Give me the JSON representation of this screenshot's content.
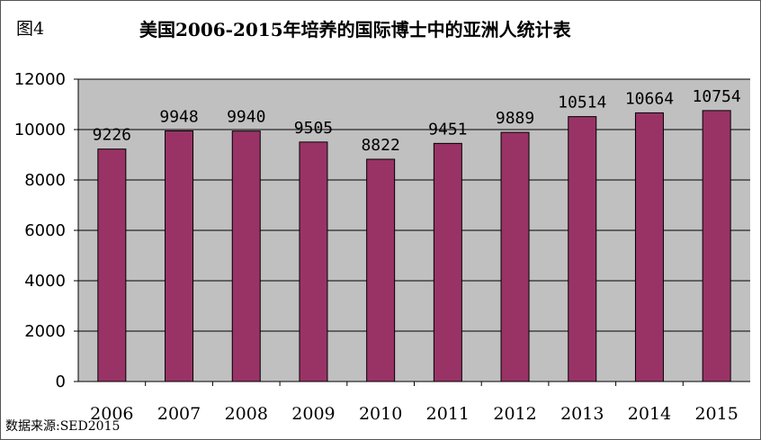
{
  "figure_label": "图4",
  "source": "数据来源:SED2015",
  "colors": {
    "bar": "#993366",
    "plot_bg": "#c0c0c0",
    "grid": "#000000"
  },
  "chart_data": {
    "type": "bar",
    "title": "美国2006-2015年培养的国际博士中的亚洲人统计表",
    "categories": [
      "2006",
      "2007",
      "2008",
      "2009",
      "2010",
      "2011",
      "2012",
      "2013",
      "2014",
      "2015"
    ],
    "values": [
      9226,
      9948,
      9940,
      9505,
      8822,
      9451,
      9889,
      10514,
      10664,
      10754
    ],
    "ylim": [
      0,
      12000
    ],
    "yticks": [
      0,
      2000,
      4000,
      6000,
      8000,
      10000,
      12000
    ],
    "grid": true,
    "legend": "none",
    "xlabel": "",
    "ylabel": ""
  }
}
